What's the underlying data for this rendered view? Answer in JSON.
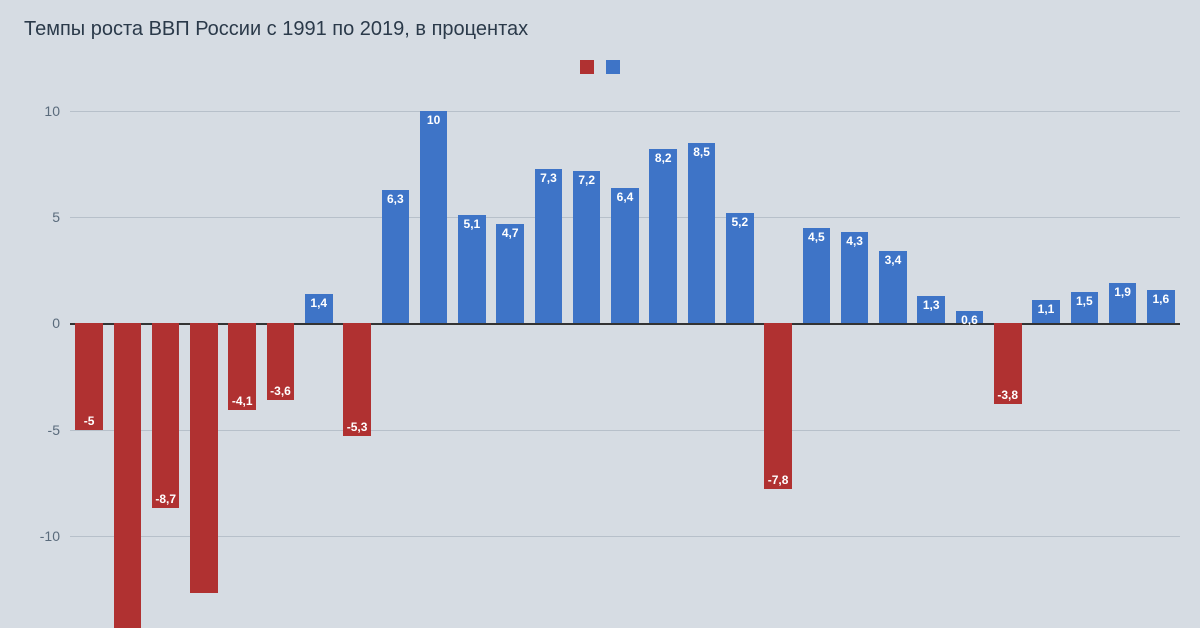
{
  "title": "Темпы роста ВВП России с 1991 по 2019, в процентах",
  "chart": {
    "type": "bar",
    "background_color": "#d6dce3",
    "grid_color": "#b7c0ca",
    "axis_color": "#333333",
    "title_color": "#2b3a4a",
    "title_fontsize": 20,
    "ylabel_color": "#5a6b7c",
    "ylabel_fontsize": 14,
    "bar_label_color": "#ffffff",
    "bar_label_fontsize": 12,
    "positive_color": "#3e74c7",
    "negative_color": "#b03131",
    "ylim_bottom": -13.5,
    "ylim_top": 11,
    "yticks": [
      10,
      5,
      0,
      -5,
      -10
    ],
    "bar_width_ratio": 0.72,
    "values": [
      -5,
      -14.5,
      -8.7,
      -12.7,
      -4.1,
      -3.6,
      1.4,
      -5.3,
      6.3,
      10,
      5.1,
      4.7,
      7.3,
      7.2,
      6.4,
      8.2,
      8.5,
      5.2,
      -7.8,
      4.5,
      4.3,
      3.4,
      1.3,
      0.6,
      -3.8,
      1.1,
      1.5,
      1.9,
      1.6
    ],
    "labels": [
      "-5",
      "",
      "-8,7",
      "",
      "-4,1",
      "-3,6",
      "1,4",
      "-5,3",
      "6,3",
      "10",
      "5,1",
      "4,7",
      "7,3",
      "7,2",
      "6,4",
      "8,2",
      "8,5",
      "5,2",
      "-7,8",
      "4,5",
      "4,3",
      "3,4",
      "1,3",
      "0,6",
      "-3,8",
      "1,1",
      "1,5",
      "1,9",
      "1,6"
    ],
    "legend_swatches": [
      "#b03131",
      "#3e74c7"
    ]
  }
}
